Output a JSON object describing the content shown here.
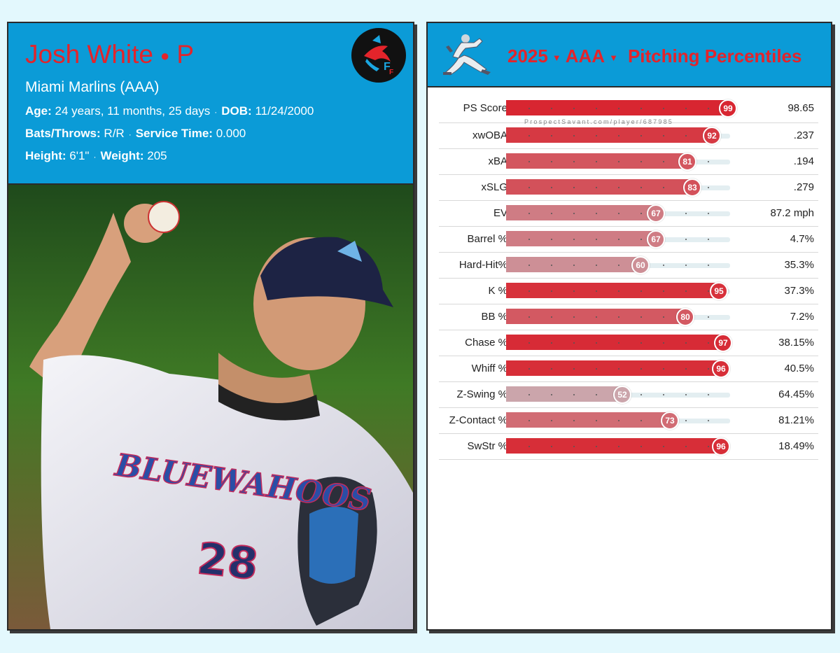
{
  "player": {
    "name": "Josh White",
    "position": "P",
    "team": "Miami Marlins (AAA)",
    "age_label": "Age:",
    "age_value": "24 years, 11 months, 25 days",
    "dob_label": "DOB:",
    "dob_value": "11/24/2000",
    "bats_label": "Bats/Throws:",
    "bats_value": "R/R",
    "service_label": "Service Time:",
    "service_value": "0.000",
    "height_label": "Height:",
    "height_value": "6'1\"",
    "weight_label": "Weight:",
    "weight_value": "205",
    "jersey_text": "BLUEWAHOOS",
    "jersey_number": "28"
  },
  "header": {
    "year": "2025",
    "level": "AAA",
    "title": "Pitching Percentiles"
  },
  "watermark": "ProspectSavant.com/player/687985",
  "colors": {
    "header_bg": "#0b9bd7",
    "accent_red": "#e3242b",
    "page_bg": "#e3f8fd"
  },
  "stats": [
    {
      "label": "PS Score",
      "percentile": 99,
      "value": "98.65"
    },
    {
      "label": "xwOBA",
      "percentile": 92,
      "value": ".237"
    },
    {
      "label": "xBA",
      "percentile": 81,
      "value": ".194"
    },
    {
      "label": "xSLG",
      "percentile": 83,
      "value": ".279"
    },
    {
      "label": "EV",
      "percentile": 67,
      "value": "87.2 mph"
    },
    {
      "label": "Barrel %",
      "percentile": 67,
      "value": "4.7%"
    },
    {
      "label": "Hard-Hit%",
      "percentile": 60,
      "value": "35.3%"
    },
    {
      "label": "K %",
      "percentile": 95,
      "value": "37.3%"
    },
    {
      "label": "BB %",
      "percentile": 80,
      "value": "7.2%"
    },
    {
      "label": "Chase %",
      "percentile": 97,
      "value": "38.15%"
    },
    {
      "label": "Whiff %",
      "percentile": 96,
      "value": "40.5%"
    },
    {
      "label": "Z-Swing %",
      "percentile": 52,
      "value": "64.45%"
    },
    {
      "label": "Z-Contact %",
      "percentile": 73,
      "value": "81.21%"
    },
    {
      "label": "SwStr %",
      "percentile": 96,
      "value": "18.49%"
    }
  ]
}
